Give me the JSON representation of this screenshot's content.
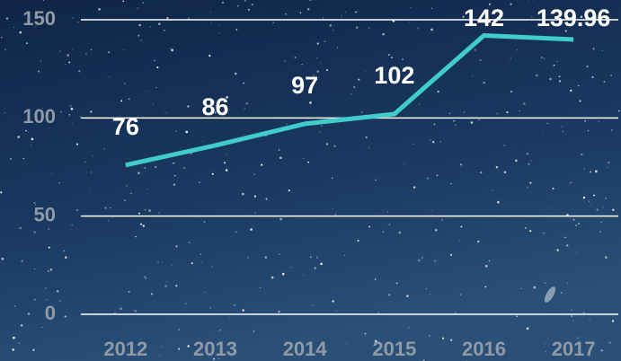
{
  "chart_data": {
    "type": "line",
    "categories": [
      "2012",
      "2013",
      "2014",
      "2015",
      "2016",
      "2017"
    ],
    "values": [
      76,
      86,
      97,
      102,
      142,
      139.96
    ],
    "color": "#41cccc",
    "ylim": [
      0,
      150
    ],
    "yticks": [
      0,
      50,
      100,
      150
    ],
    "grid": true
  }
}
